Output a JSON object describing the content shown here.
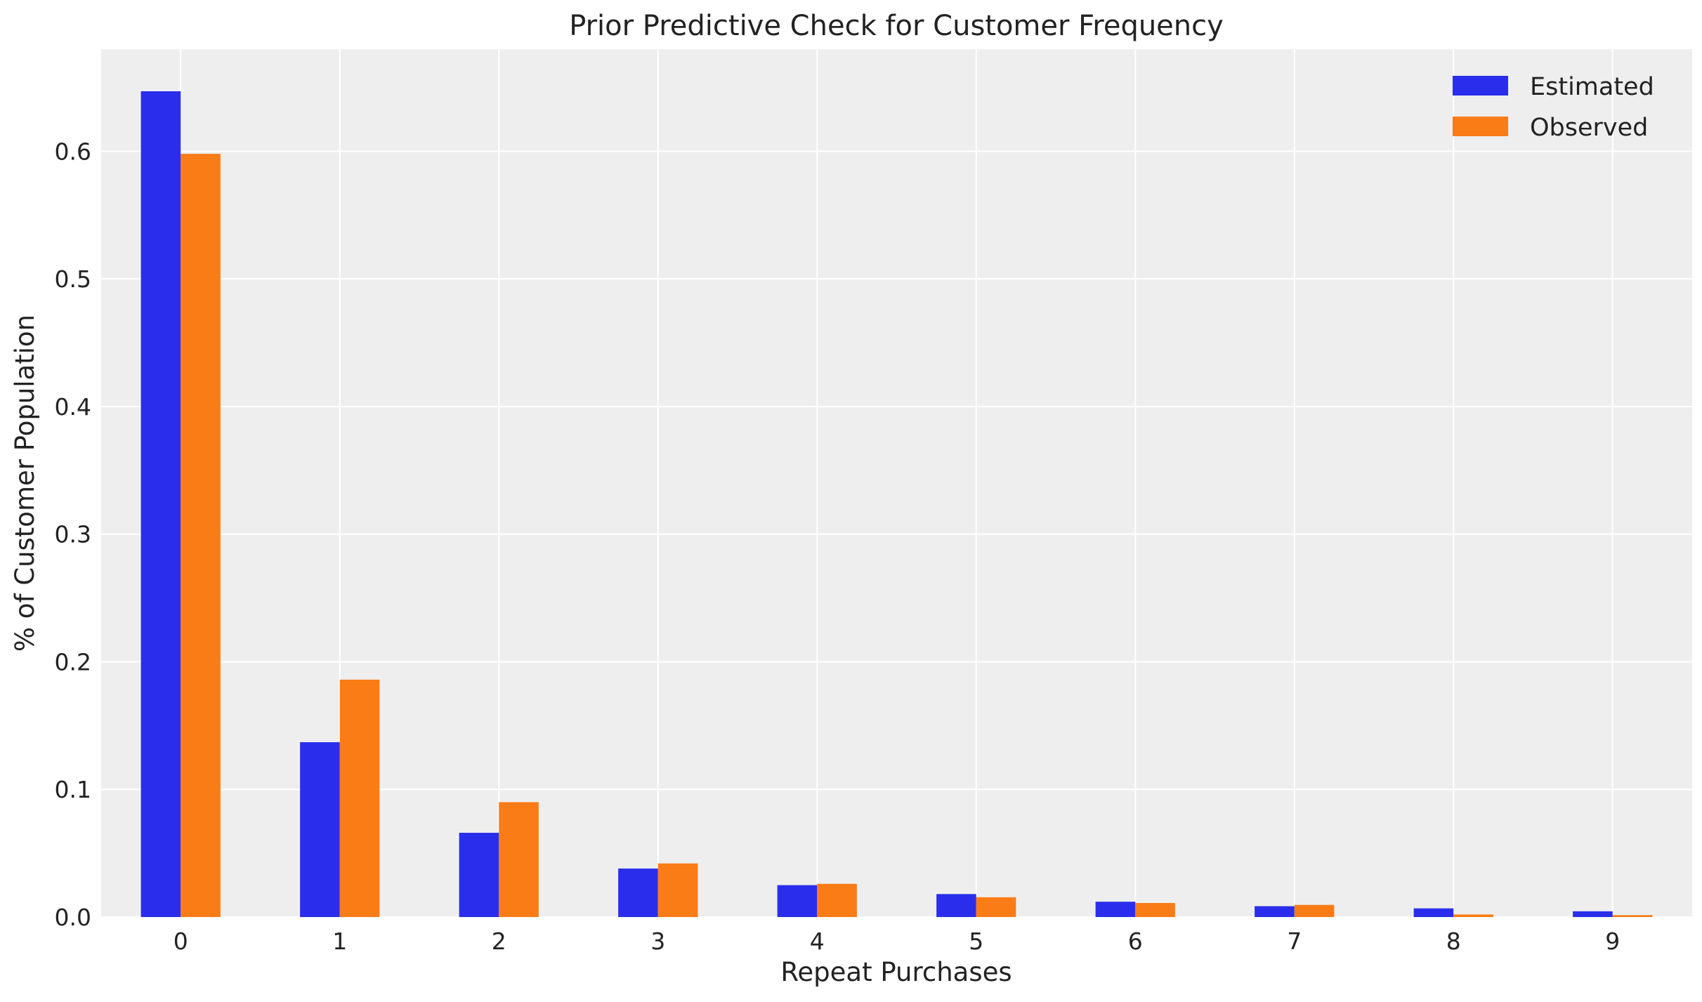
{
  "chart_data": {
    "type": "bar",
    "title": "Prior Predictive Check for Customer Frequency",
    "xlabel": "Repeat Purchases",
    "ylabel": "% of Customer Population",
    "categories": [
      "0",
      "1",
      "2",
      "3",
      "4",
      "5",
      "6",
      "7",
      "8",
      "9"
    ],
    "series": [
      {
        "name": "Estimated",
        "color": "#2a2eec",
        "values": [
          0.647,
          0.137,
          0.066,
          0.038,
          0.025,
          0.018,
          0.012,
          0.0085,
          0.0068,
          0.0045
        ]
      },
      {
        "name": "Observed",
        "color": "#fa7c17",
        "values": [
          0.598,
          0.186,
          0.09,
          0.042,
          0.026,
          0.0155,
          0.011,
          0.0095,
          0.002,
          0.0015
        ]
      }
    ],
    "ylim": [
      0,
      0.68
    ],
    "yticks": [
      "0.0",
      "0.1",
      "0.2",
      "0.3",
      "0.4",
      "0.5",
      "0.6"
    ],
    "grid": true,
    "legend": "top-right",
    "background": "#eeeeee"
  }
}
